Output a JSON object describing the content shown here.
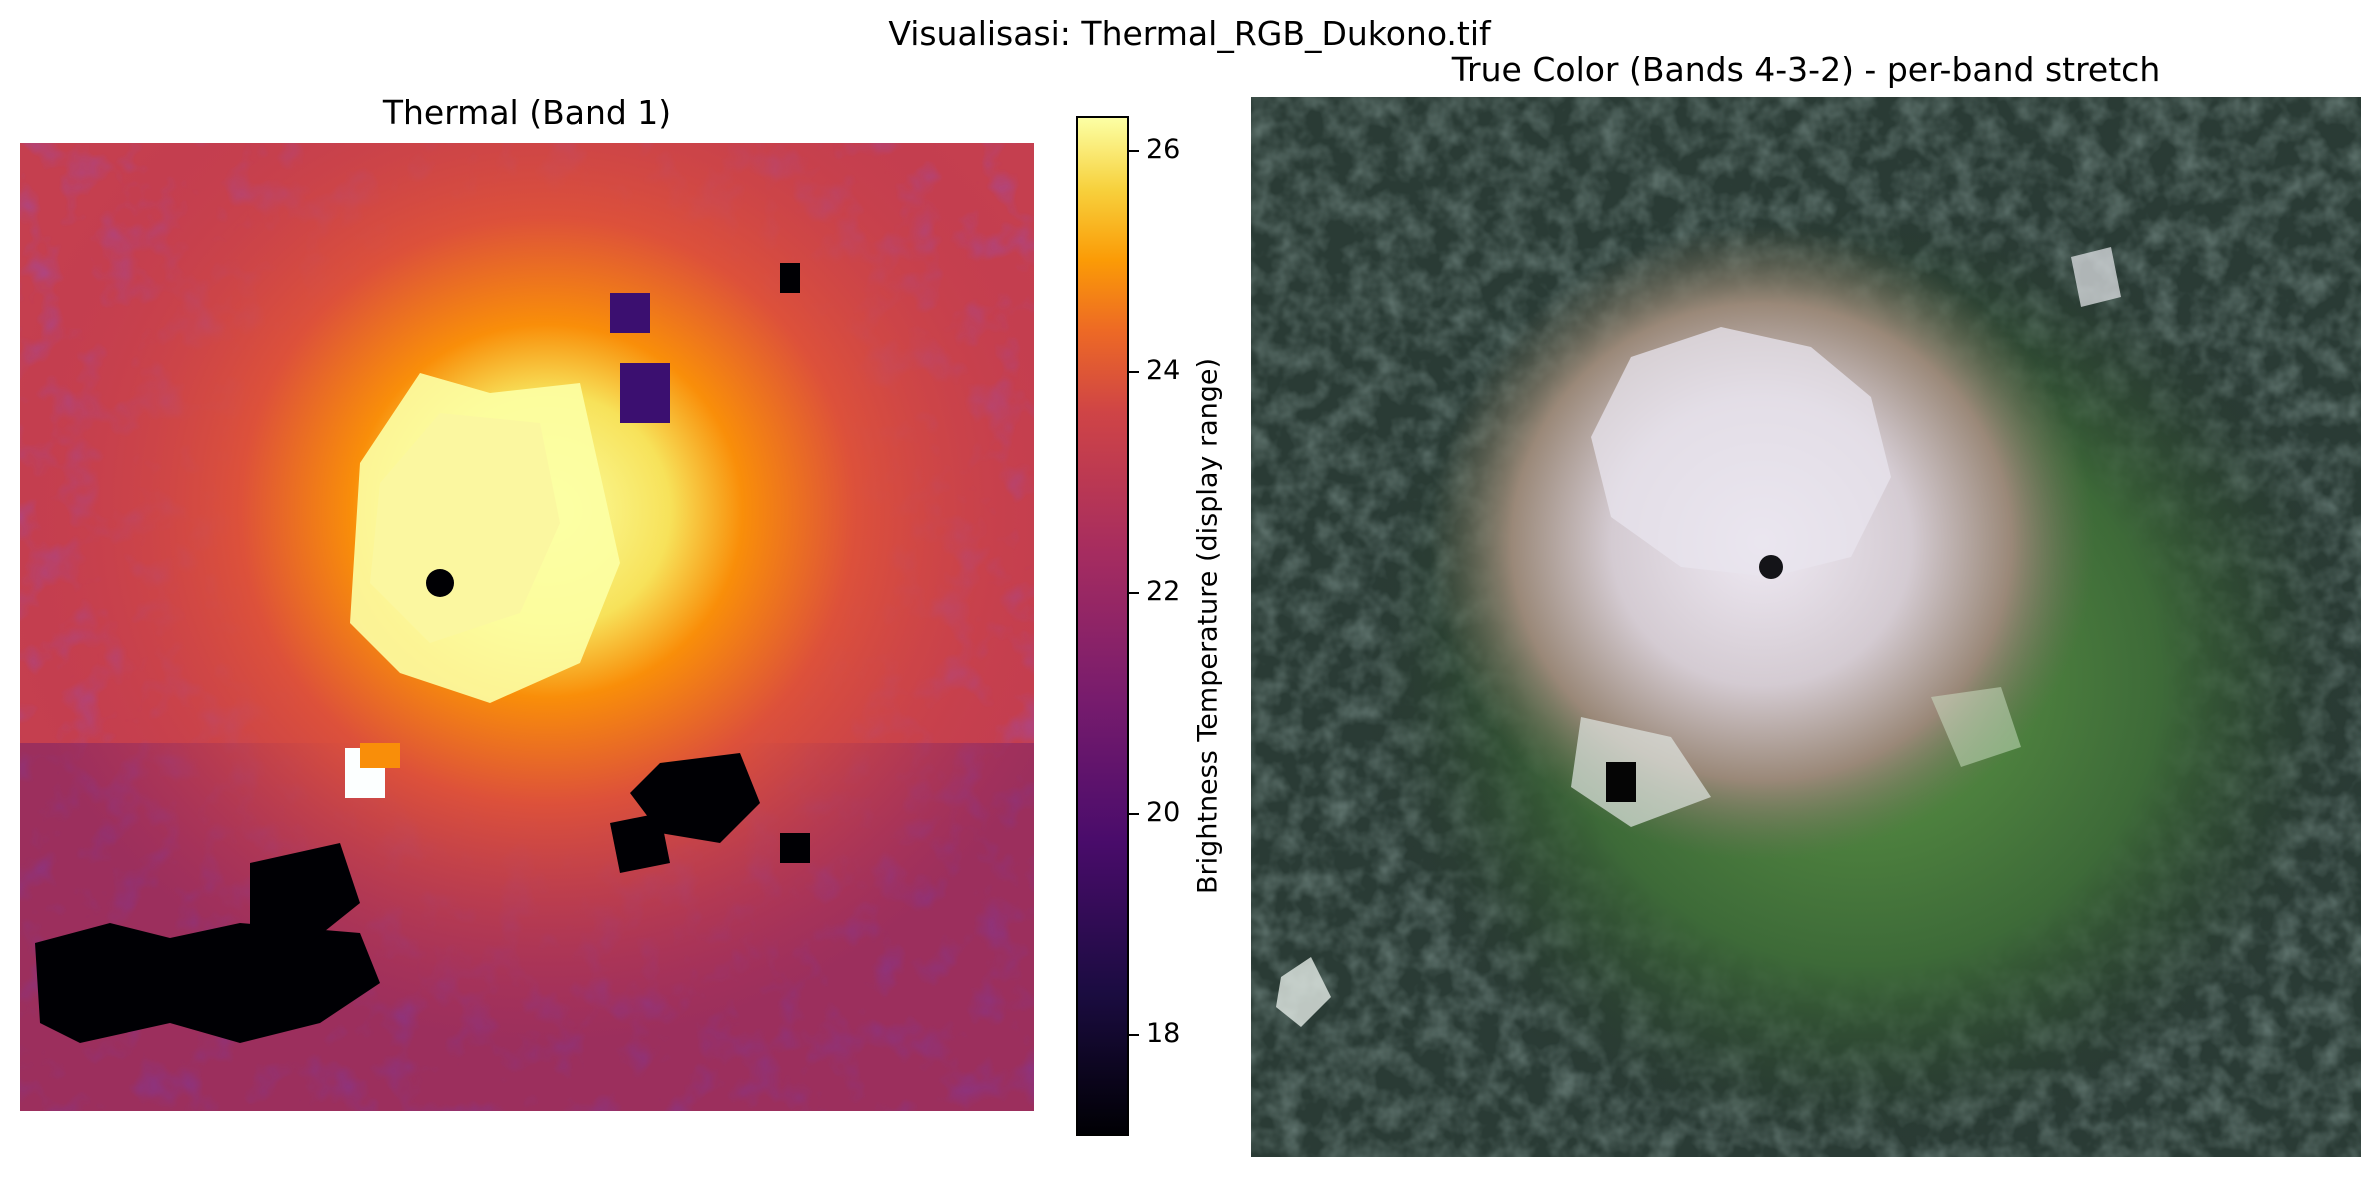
{
  "figure": {
    "suptitle": "Visualisasi: Thermal_RGB_Dukono.tif"
  },
  "thermal_panel": {
    "title": "Thermal (Band 1)",
    "colormap": "inferno",
    "colorbar": {
      "label": "Brightness Temperature (display range)",
      "range": [
        17.1,
        26.3
      ],
      "ticks": [
        "18",
        "20",
        "22",
        "24",
        "26"
      ]
    }
  },
  "rgb_panel": {
    "title": "True Color (Bands 4-3-2) - per-band stretch"
  },
  "colors": {
    "inferno_dark": "#000004",
    "inferno_purple": "#57106e",
    "inferno_red": "#bc3754",
    "inferno_orange": "#f98e09",
    "inferno_yellow": "#fcffa4",
    "vegetation_dark": "#1e2e22",
    "vegetation_green": "#4f8a3a",
    "crater_white": "#e8e4ee"
  }
}
